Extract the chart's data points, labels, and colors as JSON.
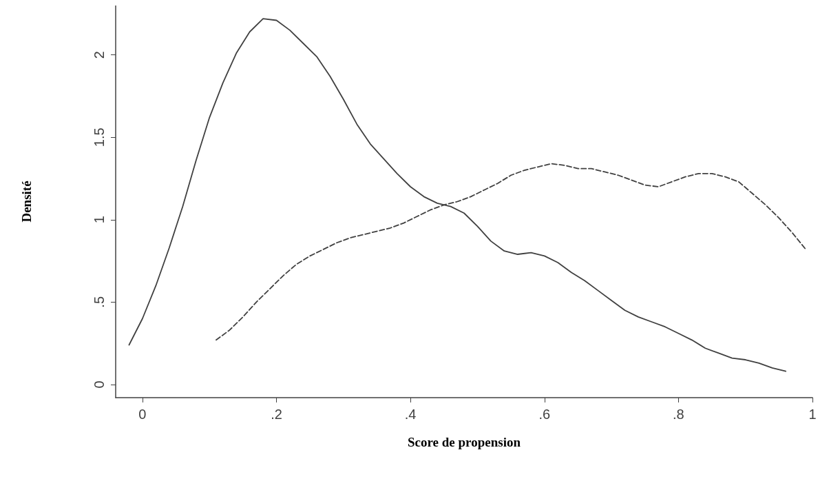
{
  "chart_data": {
    "type": "line",
    "xlabel": "Score de propension",
    "ylabel": "Densité",
    "xlim": [
      -0.04,
      1
    ],
    "ylim": [
      -0.08,
      2.3
    ],
    "xticks": [
      0,
      {
        "value": 0.2,
        "label": ".2"
      },
      {
        "value": 0.4,
        "label": ".4"
      },
      {
        "value": 0.6,
        "label": ".6"
      },
      {
        "value": 0.8,
        "label": ".8"
      },
      1
    ],
    "yticks": [
      0,
      {
        "value": 0.5,
        "label": ".5"
      },
      1,
      {
        "value": 1.5,
        "label": "1.5"
      },
      2
    ],
    "grid": false,
    "marker": "none",
    "series": [
      {
        "color": "#404040",
        "line_style": "solid",
        "x": [
          -0.02,
          0,
          0.02,
          0.04,
          0.06,
          0.08,
          0.1,
          0.12,
          0.14,
          0.16,
          0.18,
          0.2,
          0.22,
          0.24,
          0.26,
          0.28,
          0.3,
          0.32,
          0.34,
          0.36,
          0.38,
          0.4,
          0.42,
          0.44,
          0.46,
          0.48,
          0.5,
          0.52,
          0.54,
          0.56,
          0.58,
          0.6,
          0.62,
          0.64,
          0.66,
          0.68,
          0.7,
          0.72,
          0.74,
          0.76,
          0.78,
          0.8,
          0.82,
          0.84,
          0.86,
          0.88,
          0.9,
          0.92,
          0.94,
          0.96
        ],
        "values": [
          0.24,
          0.4,
          0.6,
          0.83,
          1.08,
          1.36,
          1.62,
          1.83,
          2.01,
          2.14,
          2.22,
          2.21,
          2.15,
          2.07,
          1.99,
          1.87,
          1.73,
          1.58,
          1.46,
          1.37,
          1.28,
          1.2,
          1.14,
          1.1,
          1.08,
          1.04,
          0.96,
          0.87,
          0.81,
          0.79,
          0.8,
          0.78,
          0.74,
          0.68,
          0.63,
          0.57,
          0.51,
          0.45,
          0.41,
          0.38,
          0.35,
          0.31,
          0.27,
          0.22,
          0.19,
          0.16,
          0.15,
          0.13,
          0.1,
          0.08
        ]
      },
      {
        "color": "#404040",
        "line_style": "dashed",
        "x": [
          0.11,
          0.13,
          0.15,
          0.17,
          0.19,
          0.21,
          0.23,
          0.25,
          0.27,
          0.29,
          0.31,
          0.33,
          0.35,
          0.37,
          0.39,
          0.41,
          0.43,
          0.45,
          0.47,
          0.49,
          0.51,
          0.53,
          0.55,
          0.57,
          0.59,
          0.61,
          0.63,
          0.65,
          0.67,
          0.69,
          0.71,
          0.73,
          0.75,
          0.77,
          0.79,
          0.81,
          0.83,
          0.85,
          0.87,
          0.89,
          0.91,
          0.93,
          0.95,
          0.97,
          0.99
        ],
        "values": [
          0.27,
          0.33,
          0.41,
          0.5,
          0.58,
          0.66,
          0.73,
          0.78,
          0.82,
          0.86,
          0.89,
          0.91,
          0.93,
          0.95,
          0.98,
          1.02,
          1.06,
          1.09,
          1.11,
          1.14,
          1.18,
          1.22,
          1.27,
          1.3,
          1.32,
          1.34,
          1.33,
          1.31,
          1.31,
          1.29,
          1.27,
          1.24,
          1.21,
          1.2,
          1.23,
          1.26,
          1.28,
          1.28,
          1.26,
          1.23,
          1.16,
          1.09,
          1.01,
          0.92,
          0.82
        ]
      }
    ]
  }
}
